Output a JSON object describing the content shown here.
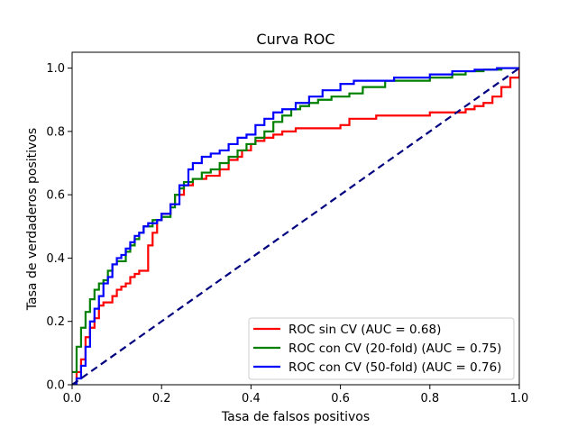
{
  "chart_data": {
    "type": "line",
    "title": "Curva ROC",
    "xlabel": "Tasa de falsos positivos",
    "ylabel": "Tasa de verdaderos positivos",
    "xlim": [
      0.0,
      1.0
    ],
    "ylim": [
      0.0,
      1.05
    ],
    "xticks": [
      0.0,
      0.2,
      0.4,
      0.6,
      0.8,
      1.0
    ],
    "yticks": [
      0.0,
      0.2,
      0.4,
      0.6,
      0.8,
      1.0
    ],
    "xtick_labels": [
      "0.0",
      "0.2",
      "0.4",
      "0.6",
      "0.8",
      "1.0"
    ],
    "ytick_labels": [
      "0.0",
      "0.2",
      "0.4",
      "0.6",
      "0.8",
      "1.0"
    ],
    "grid": false,
    "legend_position": "bottom-right",
    "series": [
      {
        "name": "ROC sin CV (AUC = 0.68)",
        "color": "#ff0000",
        "style": "step-solid",
        "x": [
          0.0,
          0.01,
          0.02,
          0.03,
          0.04,
          0.05,
          0.06,
          0.07,
          0.09,
          0.1,
          0.11,
          0.12,
          0.13,
          0.14,
          0.15,
          0.17,
          0.18,
          0.19,
          0.2,
          0.22,
          0.23,
          0.25,
          0.27,
          0.3,
          0.33,
          0.35,
          0.37,
          0.38,
          0.4,
          0.41,
          0.43,
          0.45,
          0.47,
          0.5,
          0.55,
          0.6,
          0.62,
          0.65,
          0.68,
          0.7,
          0.8,
          0.85,
          0.88,
          0.9,
          0.92,
          0.94,
          0.96,
          0.98,
          1.0
        ],
        "y": [
          0.0,
          0.04,
          0.08,
          0.15,
          0.18,
          0.21,
          0.25,
          0.26,
          0.28,
          0.3,
          0.31,
          0.32,
          0.34,
          0.35,
          0.36,
          0.44,
          0.48,
          0.52,
          0.54,
          0.57,
          0.6,
          0.63,
          0.65,
          0.66,
          0.68,
          0.71,
          0.72,
          0.74,
          0.76,
          0.77,
          0.78,
          0.79,
          0.8,
          0.81,
          0.81,
          0.82,
          0.84,
          0.84,
          0.85,
          0.85,
          0.86,
          0.86,
          0.87,
          0.88,
          0.89,
          0.91,
          0.94,
          0.97,
          1.0
        ]
      },
      {
        "name": "ROC con CV (20-fold) (AUC = 0.75)",
        "color": "#008000",
        "style": "step-solid",
        "x": [
          0.0,
          0.01,
          0.02,
          0.03,
          0.04,
          0.05,
          0.06,
          0.07,
          0.08,
          0.09,
          0.1,
          0.12,
          0.13,
          0.14,
          0.15,
          0.16,
          0.18,
          0.2,
          0.22,
          0.23,
          0.24,
          0.25,
          0.27,
          0.29,
          0.31,
          0.33,
          0.35,
          0.37,
          0.39,
          0.41,
          0.43,
          0.45,
          0.47,
          0.49,
          0.51,
          0.53,
          0.55,
          0.58,
          0.62,
          0.65,
          0.7,
          0.8,
          0.85,
          0.88,
          0.92,
          0.96,
          1.0
        ],
        "y": [
          0.04,
          0.12,
          0.18,
          0.23,
          0.27,
          0.3,
          0.32,
          0.33,
          0.36,
          0.38,
          0.39,
          0.42,
          0.44,
          0.46,
          0.48,
          0.5,
          0.52,
          0.53,
          0.56,
          0.6,
          0.62,
          0.64,
          0.65,
          0.67,
          0.68,
          0.7,
          0.72,
          0.74,
          0.76,
          0.78,
          0.8,
          0.83,
          0.85,
          0.87,
          0.88,
          0.89,
          0.9,
          0.91,
          0.92,
          0.94,
          0.96,
          0.97,
          0.98,
          0.99,
          0.995,
          1.0,
          1.0
        ]
      },
      {
        "name": "ROC con CV (50-fold) (AUC = 0.76)",
        "color": "#0000ff",
        "style": "step-solid",
        "x": [
          0.0,
          0.01,
          0.02,
          0.03,
          0.04,
          0.05,
          0.06,
          0.07,
          0.08,
          0.09,
          0.1,
          0.11,
          0.12,
          0.13,
          0.14,
          0.15,
          0.16,
          0.17,
          0.19,
          0.2,
          0.22,
          0.24,
          0.26,
          0.27,
          0.29,
          0.31,
          0.33,
          0.35,
          0.37,
          0.39,
          0.41,
          0.43,
          0.45,
          0.47,
          0.5,
          0.53,
          0.56,
          0.6,
          0.63,
          0.67,
          0.72,
          0.8,
          0.85,
          0.9,
          0.95,
          1.0
        ],
        "y": [
          0.0,
          0.02,
          0.06,
          0.12,
          0.2,
          0.24,
          0.28,
          0.32,
          0.34,
          0.38,
          0.4,
          0.41,
          0.43,
          0.45,
          0.47,
          0.48,
          0.5,
          0.51,
          0.52,
          0.54,
          0.57,
          0.63,
          0.68,
          0.7,
          0.72,
          0.73,
          0.74,
          0.76,
          0.78,
          0.79,
          0.82,
          0.84,
          0.86,
          0.87,
          0.89,
          0.91,
          0.93,
          0.95,
          0.96,
          0.96,
          0.97,
          0.98,
          0.99,
          0.995,
          1.0,
          1.0
        ]
      },
      {
        "name": "",
        "color": "#000080",
        "style": "dashed",
        "x": [
          0.0,
          1.0
        ],
        "y": [
          0.0,
          1.0
        ]
      }
    ]
  }
}
